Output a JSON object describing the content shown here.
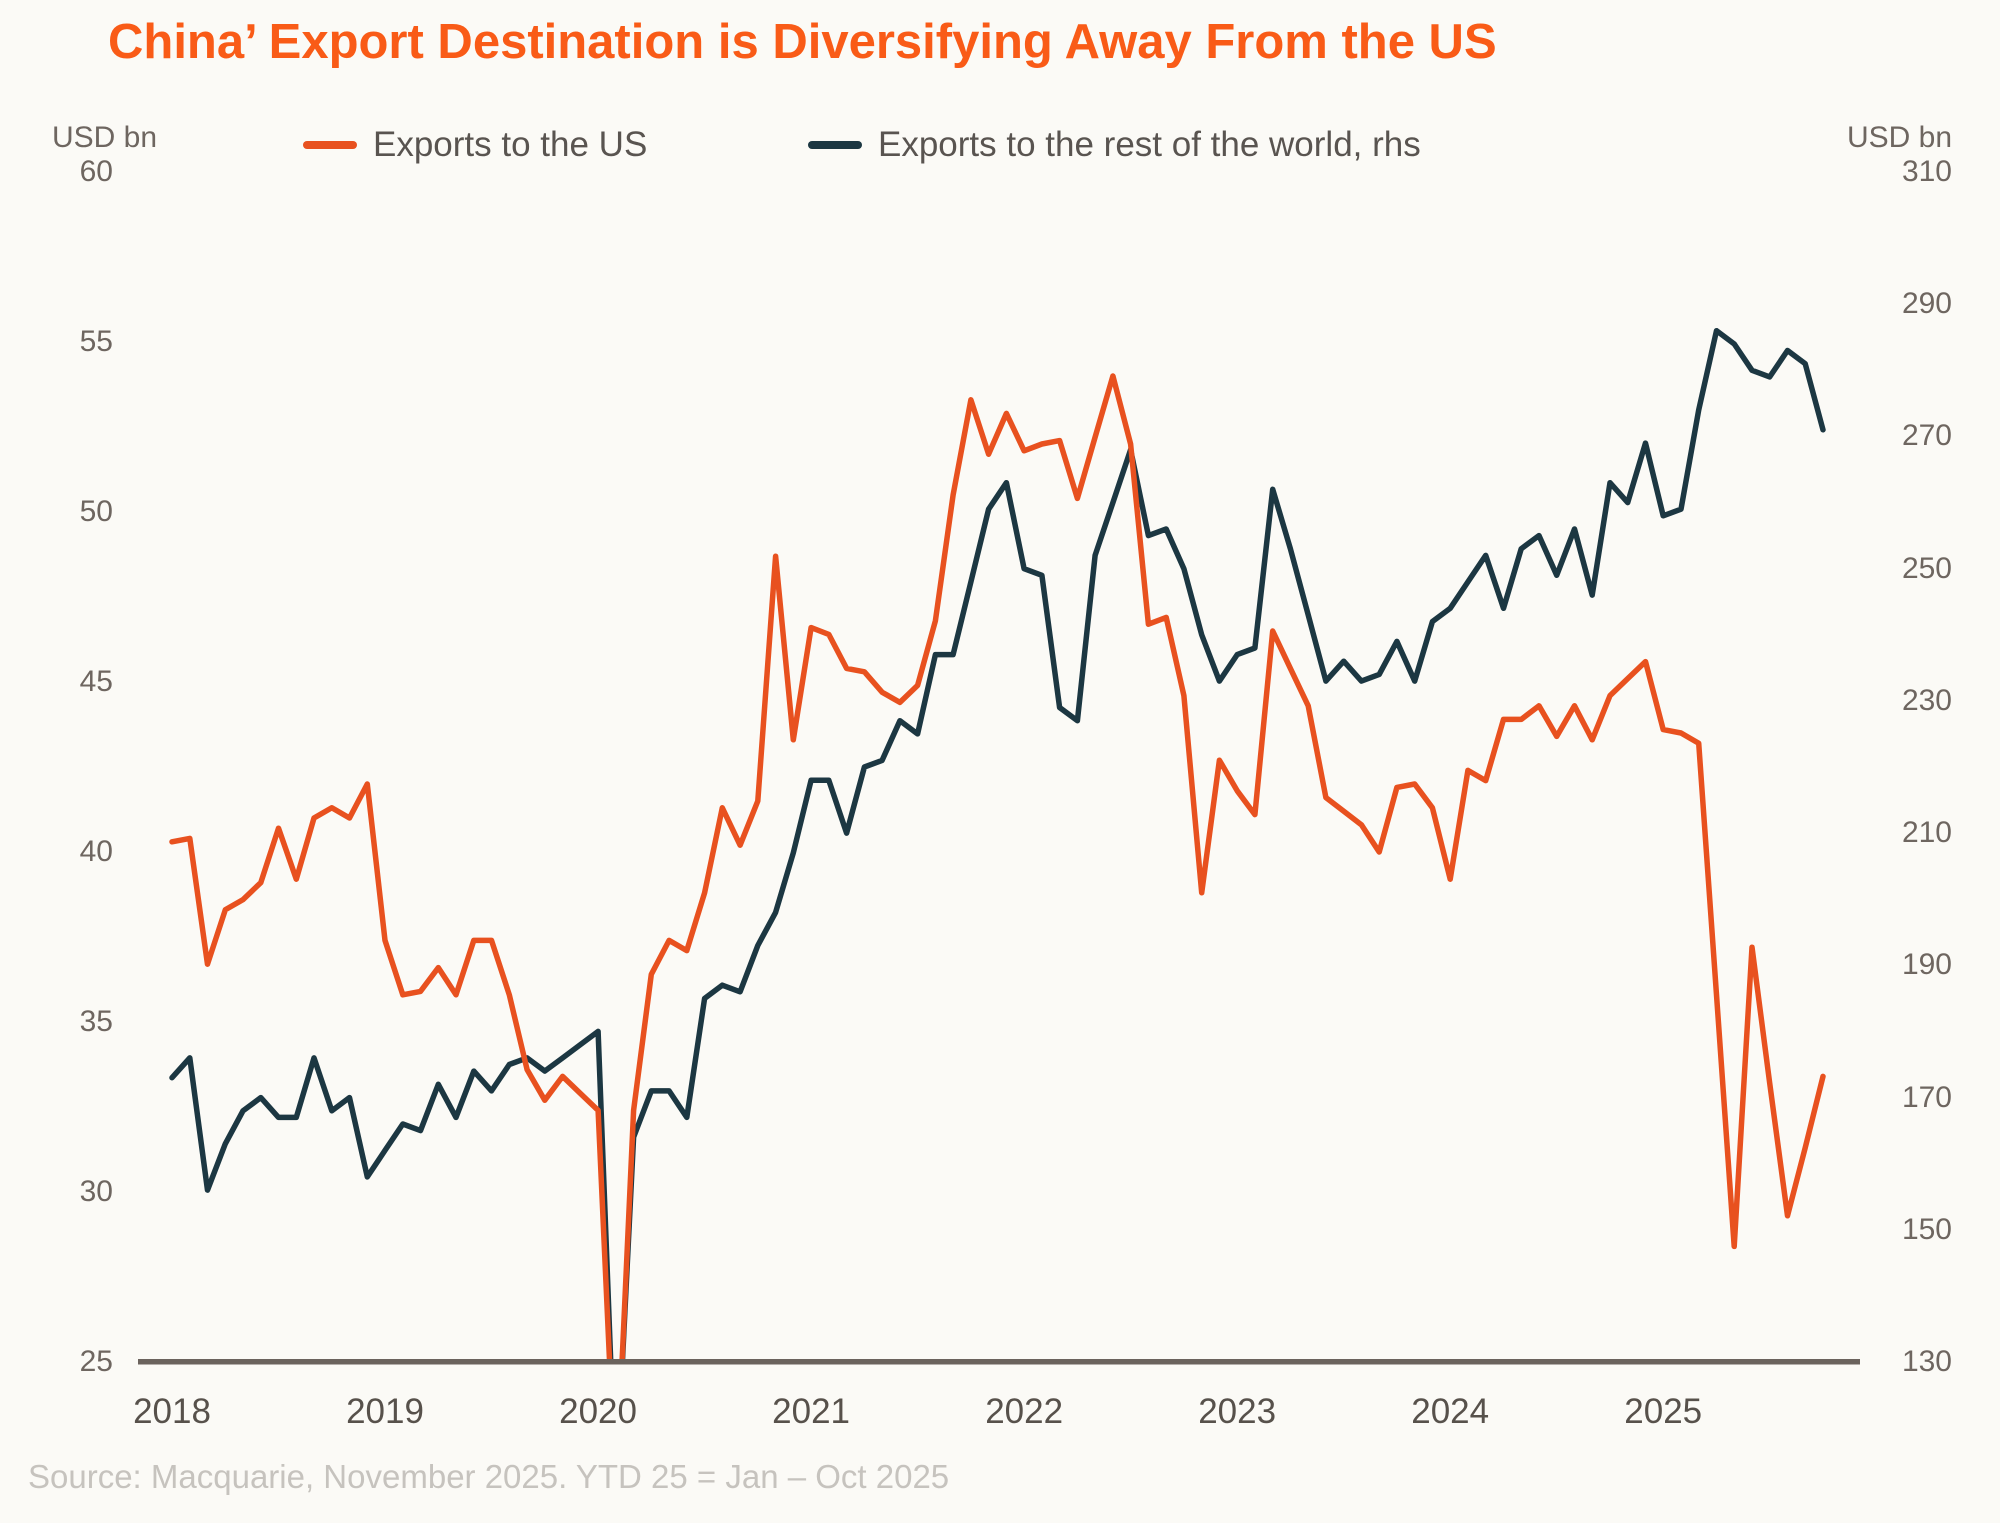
{
  "title": "China’ Export Destination is Diversifying Away From the US",
  "source": "Source: Macquarie, November 2025. YTD 25 = Jan – Oct 2025",
  "colors": {
    "title_orange": "#F95B17",
    "us_line": "#E8511F",
    "row_line": "#1C3742",
    "axis_line": "#6B635D",
    "background": "#FBFAF6"
  },
  "legend": [
    {
      "label": "Exports to the US",
      "color": "#E8511F"
    },
    {
      "label": "Exports to the rest of the world, rhs",
      "color": "#1C3742"
    }
  ],
  "left_axis": {
    "unit": "USD bn",
    "ticks": [
      60,
      55,
      50,
      45,
      40,
      35,
      30,
      25
    ]
  },
  "right_axis": {
    "unit": "USD bn",
    "ticks": [
      310,
      290,
      270,
      250,
      230,
      210,
      190,
      170,
      150,
      130
    ]
  },
  "x_axis": {
    "ticks": [
      "2018",
      "2019",
      "2020",
      "2021",
      "2022",
      "2023",
      "2024",
      "2025"
    ]
  },
  "chart_data": {
    "type": "line",
    "frequency": "monthly",
    "x_start": "2018-01",
    "x_end": "2025-10",
    "left_ylim": [
      25,
      60
    ],
    "right_ylim": [
      130,
      310
    ],
    "grid": false,
    "legend_position": "top",
    "note": "Values below axis minimum (Feb 2020 COVID collapse) are clipped at the baseline",
    "series": [
      {
        "name": "Exports to the US",
        "axis": "left",
        "color": "#E8511F",
        "values": [
          40.3,
          40.4,
          36.7,
          38.3,
          38.6,
          39.1,
          40.7,
          39.2,
          41.0,
          41.3,
          41.0,
          42.0,
          37.4,
          35.8,
          35.9,
          36.6,
          35.8,
          37.4,
          37.4,
          35.8,
          33.6,
          32.7,
          33.4,
          32.9,
          32.4,
          21.0,
          32.4,
          36.4,
          37.4,
          37.1,
          38.8,
          41.3,
          40.2,
          41.5,
          48.7,
          43.3,
          46.6,
          46.4,
          45.4,
          45.3,
          44.7,
          44.4,
          44.9,
          46.8,
          50.5,
          53.3,
          51.7,
          52.9,
          51.8,
          52.0,
          52.1,
          50.4,
          52.2,
          54.0,
          52.0,
          46.7,
          46.9,
          44.6,
          38.8,
          42.7,
          41.8,
          41.1,
          46.5,
          45.4,
          44.3,
          41.6,
          41.2,
          40.8,
          40.0,
          41.9,
          42.0,
          41.3,
          39.2,
          42.4,
          42.1,
          43.9,
          43.9,
          44.3,
          43.4,
          44.3,
          43.3,
          44.6,
          45.1,
          45.6,
          43.6,
          43.5,
          43.2,
          35.8,
          28.4,
          37.2,
          33.2,
          29.3,
          31.3,
          33.4
        ]
      },
      {
        "name": "Exports to the rest of the world, rhs",
        "axis": "right",
        "color": "#1C3742",
        "values": [
          173,
          176,
          156,
          163,
          168,
          170,
          167,
          167,
          176,
          168,
          170,
          158,
          162,
          166,
          165,
          172,
          167,
          174,
          171,
          175,
          176,
          174,
          176,
          178,
          180,
          110,
          164,
          171,
          171,
          167,
          185,
          187,
          186,
          193,
          198,
          207,
          218,
          218,
          210,
          220,
          221,
          227,
          225,
          237,
          237,
          248,
          259,
          263,
          250,
          249,
          229,
          227,
          252,
          260,
          268,
          255,
          256,
          250,
          240,
          233,
          237,
          238,
          262,
          253,
          243,
          233,
          236,
          233,
          234,
          239,
          233,
          242,
          244,
          248,
          252,
          244,
          253,
          255,
          249,
          256,
          246,
          263,
          260,
          269,
          258,
          259,
          274,
          286,
          284,
          280,
          279,
          283,
          281,
          271
        ]
      }
    ]
  }
}
